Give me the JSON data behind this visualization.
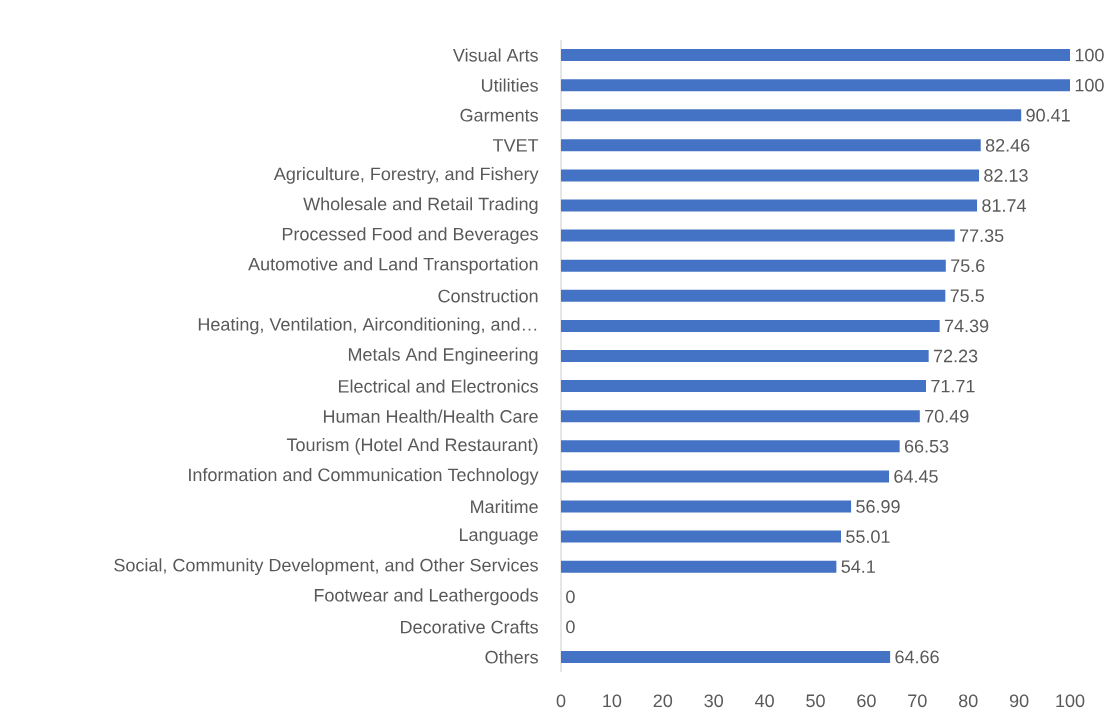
{
  "chart_data": {
    "type": "bar",
    "orientation": "horizontal",
    "categories": [
      "Visual Arts",
      "Utilities",
      "Garments",
      "TVET",
      "Agriculture, Forestry, and Fishery",
      "Wholesale and Retail Trading",
      "Processed Food and Beverages",
      "Automotive and Land Transportation",
      "Construction",
      "Heating, Ventilation, Airconditioning, and…",
      "Metals And Engineering",
      "Electrical and Electronics",
      "Human Health/Health Care",
      "Tourism (Hotel And Restaurant)",
      "Information and Communication Technology",
      "Maritime",
      "Language",
      "Social, Community Development, and Other Services",
      "Footwear and Leathergoods",
      "Decorative Crafts",
      "Others"
    ],
    "values": [
      100,
      100,
      90.41,
      82.46,
      82.13,
      81.74,
      77.35,
      75.6,
      75.5,
      74.39,
      72.23,
      71.71,
      70.49,
      66.53,
      64.45,
      56.99,
      55.01,
      54.1,
      0,
      0,
      64.66
    ],
    "color": "#4472c4",
    "data_labels": true,
    "xlim": [
      0,
      100
    ],
    "xticks": [
      0,
      10,
      20,
      30,
      40,
      50,
      60,
      70,
      80,
      90,
      100
    ]
  }
}
